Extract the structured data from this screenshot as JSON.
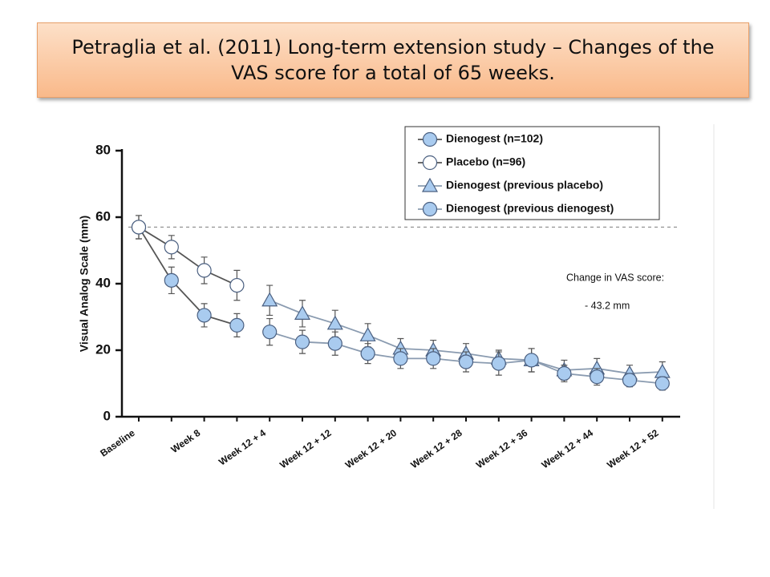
{
  "chart_data": {
    "type": "line",
    "title": "Petraglia et al. (2011) Long-term extension study – Changes of the VAS score for a total of 65 weeks.",
    "y_label": "Visual Analog Scale (mm)",
    "categories": [
      "Baseline",
      null,
      "Week 8",
      null,
      "Week 12 + 4",
      null,
      "Week 12 + 12",
      null,
      "Week 12 + 20",
      null,
      "Week 12 + 28",
      null,
      "Week 12 + 36",
      null,
      "Week 12 + 44",
      null,
      "Week 12 + 52"
    ],
    "ylim": [
      0,
      80
    ],
    "yticks": [
      0,
      20,
      40,
      60,
      80
    ],
    "reference_value": 57,
    "series": [
      {
        "name": "Dienogest (n=102)",
        "marker": "circle",
        "color": "#a9cbef",
        "line_color": "#555555",
        "values": [
          57,
          41,
          30.5,
          27.5,
          null,
          null,
          null,
          null,
          null,
          null,
          null,
          null,
          null,
          null,
          null,
          null,
          null
        ],
        "errors": [
          3.5,
          4,
          3.5,
          3.5,
          null,
          null,
          null,
          null,
          null,
          null,
          null,
          null,
          null,
          null,
          null,
          null,
          null
        ]
      },
      {
        "name": "Placebo (n=96)",
        "marker": "circle",
        "color": "#ffffff",
        "line_color": "#555555",
        "values": [
          57,
          51,
          44,
          39.5,
          null,
          null,
          null,
          null,
          null,
          null,
          null,
          null,
          null,
          null,
          null,
          null,
          null
        ],
        "errors": [
          3.5,
          3.5,
          4,
          4.5,
          null,
          null,
          null,
          null,
          null,
          null,
          null,
          null,
          null,
          null,
          null,
          null,
          null
        ]
      },
      {
        "name": "Dienogest (previous placebo)",
        "marker": "triangle",
        "color": "#a9cbef",
        "line_color": "#8a9bb0",
        "values": [
          null,
          null,
          null,
          null,
          35,
          31,
          28,
          24.5,
          20.5,
          20,
          19,
          17.5,
          17,
          14,
          14.5,
          13,
          13.5
        ],
        "errors": [
          null,
          null,
          null,
          null,
          4.5,
          4,
          4,
          3.5,
          3,
          3,
          3,
          2.5,
          3.5,
          3,
          3,
          2.5,
          3
        ]
      },
      {
        "name": "Dienogest (previous dienogest)",
        "marker": "circle",
        "color": "#a9cbef",
        "line_color": "#8a9bb0",
        "values": [
          null,
          null,
          null,
          null,
          25.5,
          22.5,
          22,
          19,
          17.5,
          17.5,
          16.5,
          16,
          17,
          13,
          12,
          11,
          10
        ],
        "errors": [
          null,
          null,
          null,
          null,
          4,
          3.5,
          3.5,
          3,
          3,
          3,
          3,
          3.5,
          3.5,
          2.5,
          2.5,
          2,
          2
        ]
      }
    ],
    "annotations": [
      "Change in VAS score:",
      "- 43.2 mm"
    ]
  }
}
